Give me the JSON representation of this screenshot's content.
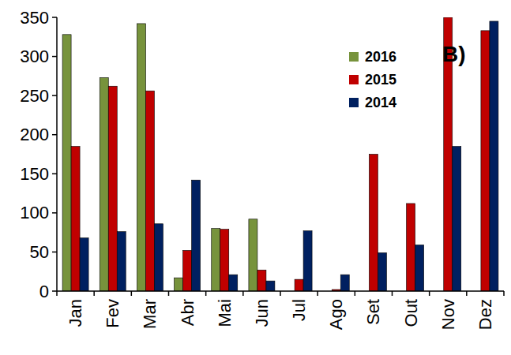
{
  "chart_data": {
    "type": "bar",
    "annotation": "B)",
    "categories": [
      "Jan",
      "Fev",
      "Mar",
      "Abr",
      "Mai",
      "Jun",
      "Jul",
      "Ago",
      "Set",
      "Out",
      "Nov",
      "Dez"
    ],
    "series": [
      {
        "name": "2016",
        "color": "#77933c",
        "values": [
          328,
          273,
          342,
          17,
          80,
          92,
          null,
          null,
          null,
          null,
          null,
          null
        ]
      },
      {
        "name": "2015",
        "color": "#c00000",
        "values": [
          185,
          262,
          256,
          52,
          79,
          27,
          15,
          2,
          175,
          112,
          350,
          333
        ]
      },
      {
        "name": "2014",
        "color": "#002060",
        "values": [
          68,
          76,
          86,
          142,
          21,
          13,
          77,
          21,
          49,
          59,
          185,
          345
        ]
      }
    ],
    "ylim": [
      0,
      350
    ],
    "yticks": [
      0,
      50,
      100,
      150,
      200,
      250,
      300,
      350
    ],
    "grid": false,
    "legend": "upper right"
  }
}
